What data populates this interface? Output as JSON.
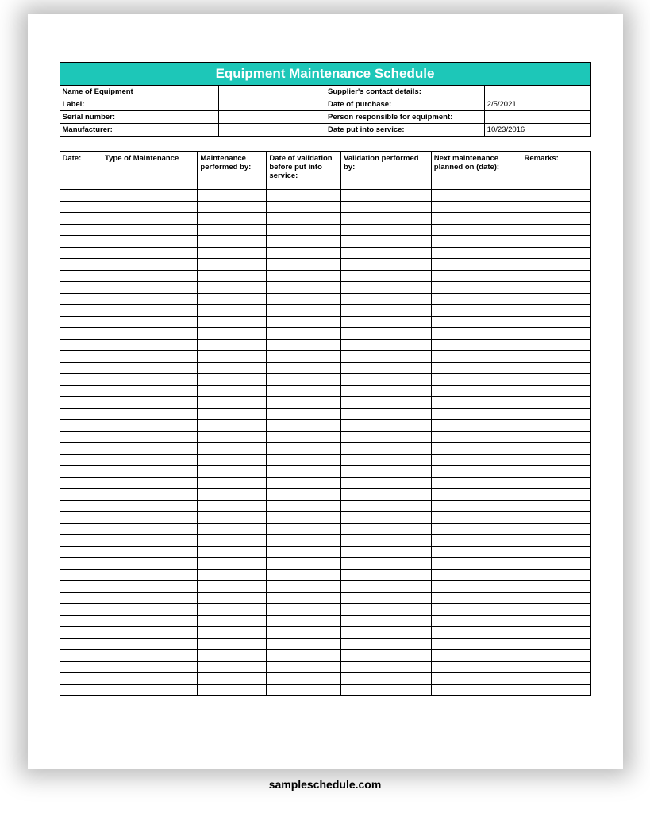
{
  "title": "Equipment Maintenance Schedule",
  "title_bg_color": "#1dc7b8",
  "title_text_color": "#ffffff",
  "info_rows": [
    {
      "label1": "Name of Equipment",
      "value1": "",
      "label2": "Supplier's contact details:",
      "value2": ""
    },
    {
      "label1": "Label:",
      "value1": "",
      "label2": "Date of purchase:",
      "value2": "2/5/2021"
    },
    {
      "label1": "Serial number:",
      "value1": "",
      "label2": "Person responsible for equipment:",
      "value2": ""
    },
    {
      "label1": "Manufacturer:",
      "value1": "",
      "label2": "Date put into service:",
      "value2": "10/23/2016"
    }
  ],
  "columns": [
    {
      "header": "Date:",
      "width": "8%"
    },
    {
      "header": "Type of Maintenance",
      "width": "18%"
    },
    {
      "header": "Maintenance performed by:",
      "width": "13%"
    },
    {
      "header": "Date of validation before put into service:",
      "width": "14%"
    },
    {
      "header": "Validation performed by:",
      "width": "17%"
    },
    {
      "header": "Next maintenance planned on (date):",
      "width": "17%"
    },
    {
      "header": "Remarks:",
      "width": "13%"
    }
  ],
  "empty_row_count": 44,
  "footer": "sampleschedule.com",
  "border_color": "#000000",
  "background_color": "#ffffff"
}
